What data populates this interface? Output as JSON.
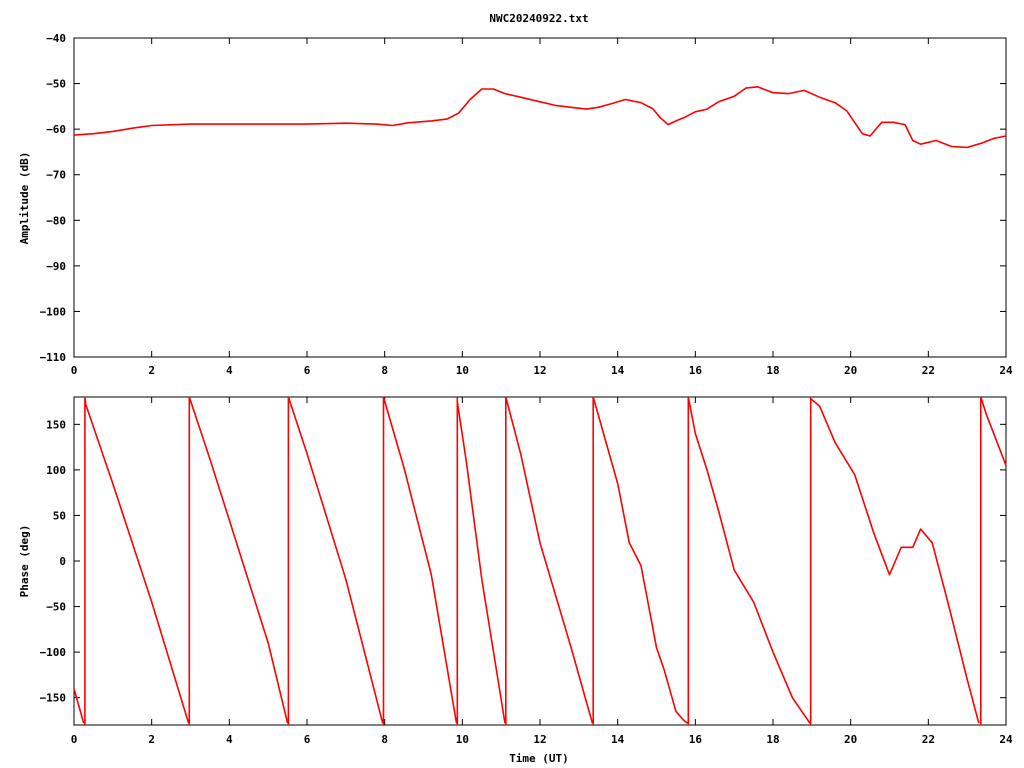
{
  "title": "NWC20240922.txt",
  "chart_data": [
    {
      "type": "line",
      "ylabel": "Amplitude (dB)",
      "xlabel": "",
      "xlim": [
        0,
        24
      ],
      "ylim": [
        -110,
        -40
      ],
      "xticks": [
        0,
        2,
        4,
        6,
        8,
        10,
        12,
        14,
        16,
        18,
        20,
        22,
        24
      ],
      "yticks": [
        -110,
        -100,
        -90,
        -80,
        -70,
        -60,
        -50,
        -40
      ],
      "grid": false,
      "color": "#ff0000",
      "series": [
        {
          "x": [
            0,
            0.5,
            1,
            1.5,
            2,
            3,
            4,
            5,
            6,
            7,
            7.8,
            8.2,
            8.6,
            9.2,
            9.6,
            9.9,
            10.2,
            10.5,
            10.8,
            11.1,
            11.5,
            12,
            12.4,
            12.8,
            13.2,
            13.5,
            13.8,
            14.2,
            14.6,
            14.9,
            15.1,
            15.3,
            15.5,
            15.7,
            16,
            16.3,
            16.6,
            17,
            17.3,
            17.6,
            18,
            18.4,
            18.8,
            19.2,
            19.6,
            19.9,
            20.1,
            20.3,
            20.5,
            20.8,
            21.1,
            21.4,
            21.6,
            21.8,
            22.2,
            22.6,
            23,
            23.4,
            23.7,
            24
          ],
          "y": [
            -61.3,
            -61,
            -60.5,
            -59.8,
            -59.2,
            -58.9,
            -58.9,
            -58.9,
            -58.9,
            -58.7,
            -58.9,
            -59.2,
            -58.6,
            -58.2,
            -57.8,
            -56.5,
            -53.5,
            -51.2,
            -51.2,
            -52.2,
            -53,
            -54,
            -54.8,
            -55.2,
            -55.6,
            -55.2,
            -54.5,
            -53.5,
            -54.2,
            -55.5,
            -57.5,
            -59,
            -58.2,
            -57.5,
            -56.2,
            -55.6,
            -54,
            -52.8,
            -51,
            -50.7,
            -52,
            -52.2,
            -51.5,
            -53,
            -54.2,
            -56,
            -58.5,
            -61,
            -61.5,
            -58.5,
            -58.5,
            -59,
            -62.5,
            -63.3,
            -62.5,
            -63.8,
            -64,
            -63,
            -62,
            -61.5
          ]
        }
      ]
    },
    {
      "type": "line",
      "ylabel": "Phase (deg)",
      "xlabel": "Time (UT)",
      "xlim": [
        0,
        24
      ],
      "ylim": [
        -180,
        180
      ],
      "xticks": [
        0,
        2,
        4,
        6,
        8,
        10,
        12,
        14,
        16,
        18,
        20,
        22,
        24
      ],
      "yticks": [
        -150,
        -100,
        -50,
        0,
        50,
        100,
        150
      ],
      "grid": false,
      "color": "#ff0000",
      "series": [
        {
          "segments": [
            {
              "x": [
                0,
                0.25
              ],
              "y": [
                -140,
                -178
              ]
            },
            {
              "x": [
                0.28,
                0.3,
                1,
                2,
                2.95
              ],
              "y": [
                180,
                172,
                85,
                -45,
                -178
              ]
            },
            {
              "x": [
                2.97,
                3.5,
                4,
                5,
                5.5
              ],
              "y": [
                180,
                112,
                45,
                -90,
                -178
              ]
            },
            {
              "x": [
                5.52,
                6,
                7,
                7.95
              ],
              "y": [
                180,
                118,
                -20,
                -178
              ]
            },
            {
              "x": [
                7.97,
                8.5,
                9.2,
                9.85
              ],
              "y": [
                180,
                102,
                -15,
                -178
              ]
            },
            {
              "x": [
                9.87,
                10.1,
                10.5,
                11.1
              ],
              "y": [
                175,
                110,
                -20,
                -178
              ]
            },
            {
              "x": [
                11.12,
                11.5,
                12,
                12.8,
                13.35
              ],
              "y": [
                180,
                118,
                20,
                -95,
                -178
              ]
            },
            {
              "x": [
                13.37,
                14,
                14.3,
                14.6,
                15,
                15.2,
                15.5,
                15.7,
                15.8
              ],
              "y": [
                180,
                85,
                20,
                -5,
                -95,
                -120,
                -165,
                -175,
                -178
              ]
            },
            {
              "x": [
                15.82,
                16,
                16.3,
                16.6,
                17,
                17.5,
                18,
                18.5,
                18.95
              ],
              "y": [
                180,
                140,
                100,
                55,
                -10,
                -45,
                -100,
                -150,
                -178
              ]
            },
            {
              "x": [
                18.97,
                19.2,
                19.6,
                20.1,
                20.6,
                21,
                21.3,
                21.6,
                21.8,
                22.1,
                22.5,
                23,
                23.3
              ],
              "y": [
                178,
                170,
                130,
                95,
                30,
                -15,
                15,
                15,
                35,
                20,
                -45,
                -130,
                -178
              ]
            },
            {
              "x": [
                23.35,
                23.5,
                24
              ],
              "y": [
                180,
                160,
                105
              ]
            }
          ]
        }
      ]
    }
  ]
}
